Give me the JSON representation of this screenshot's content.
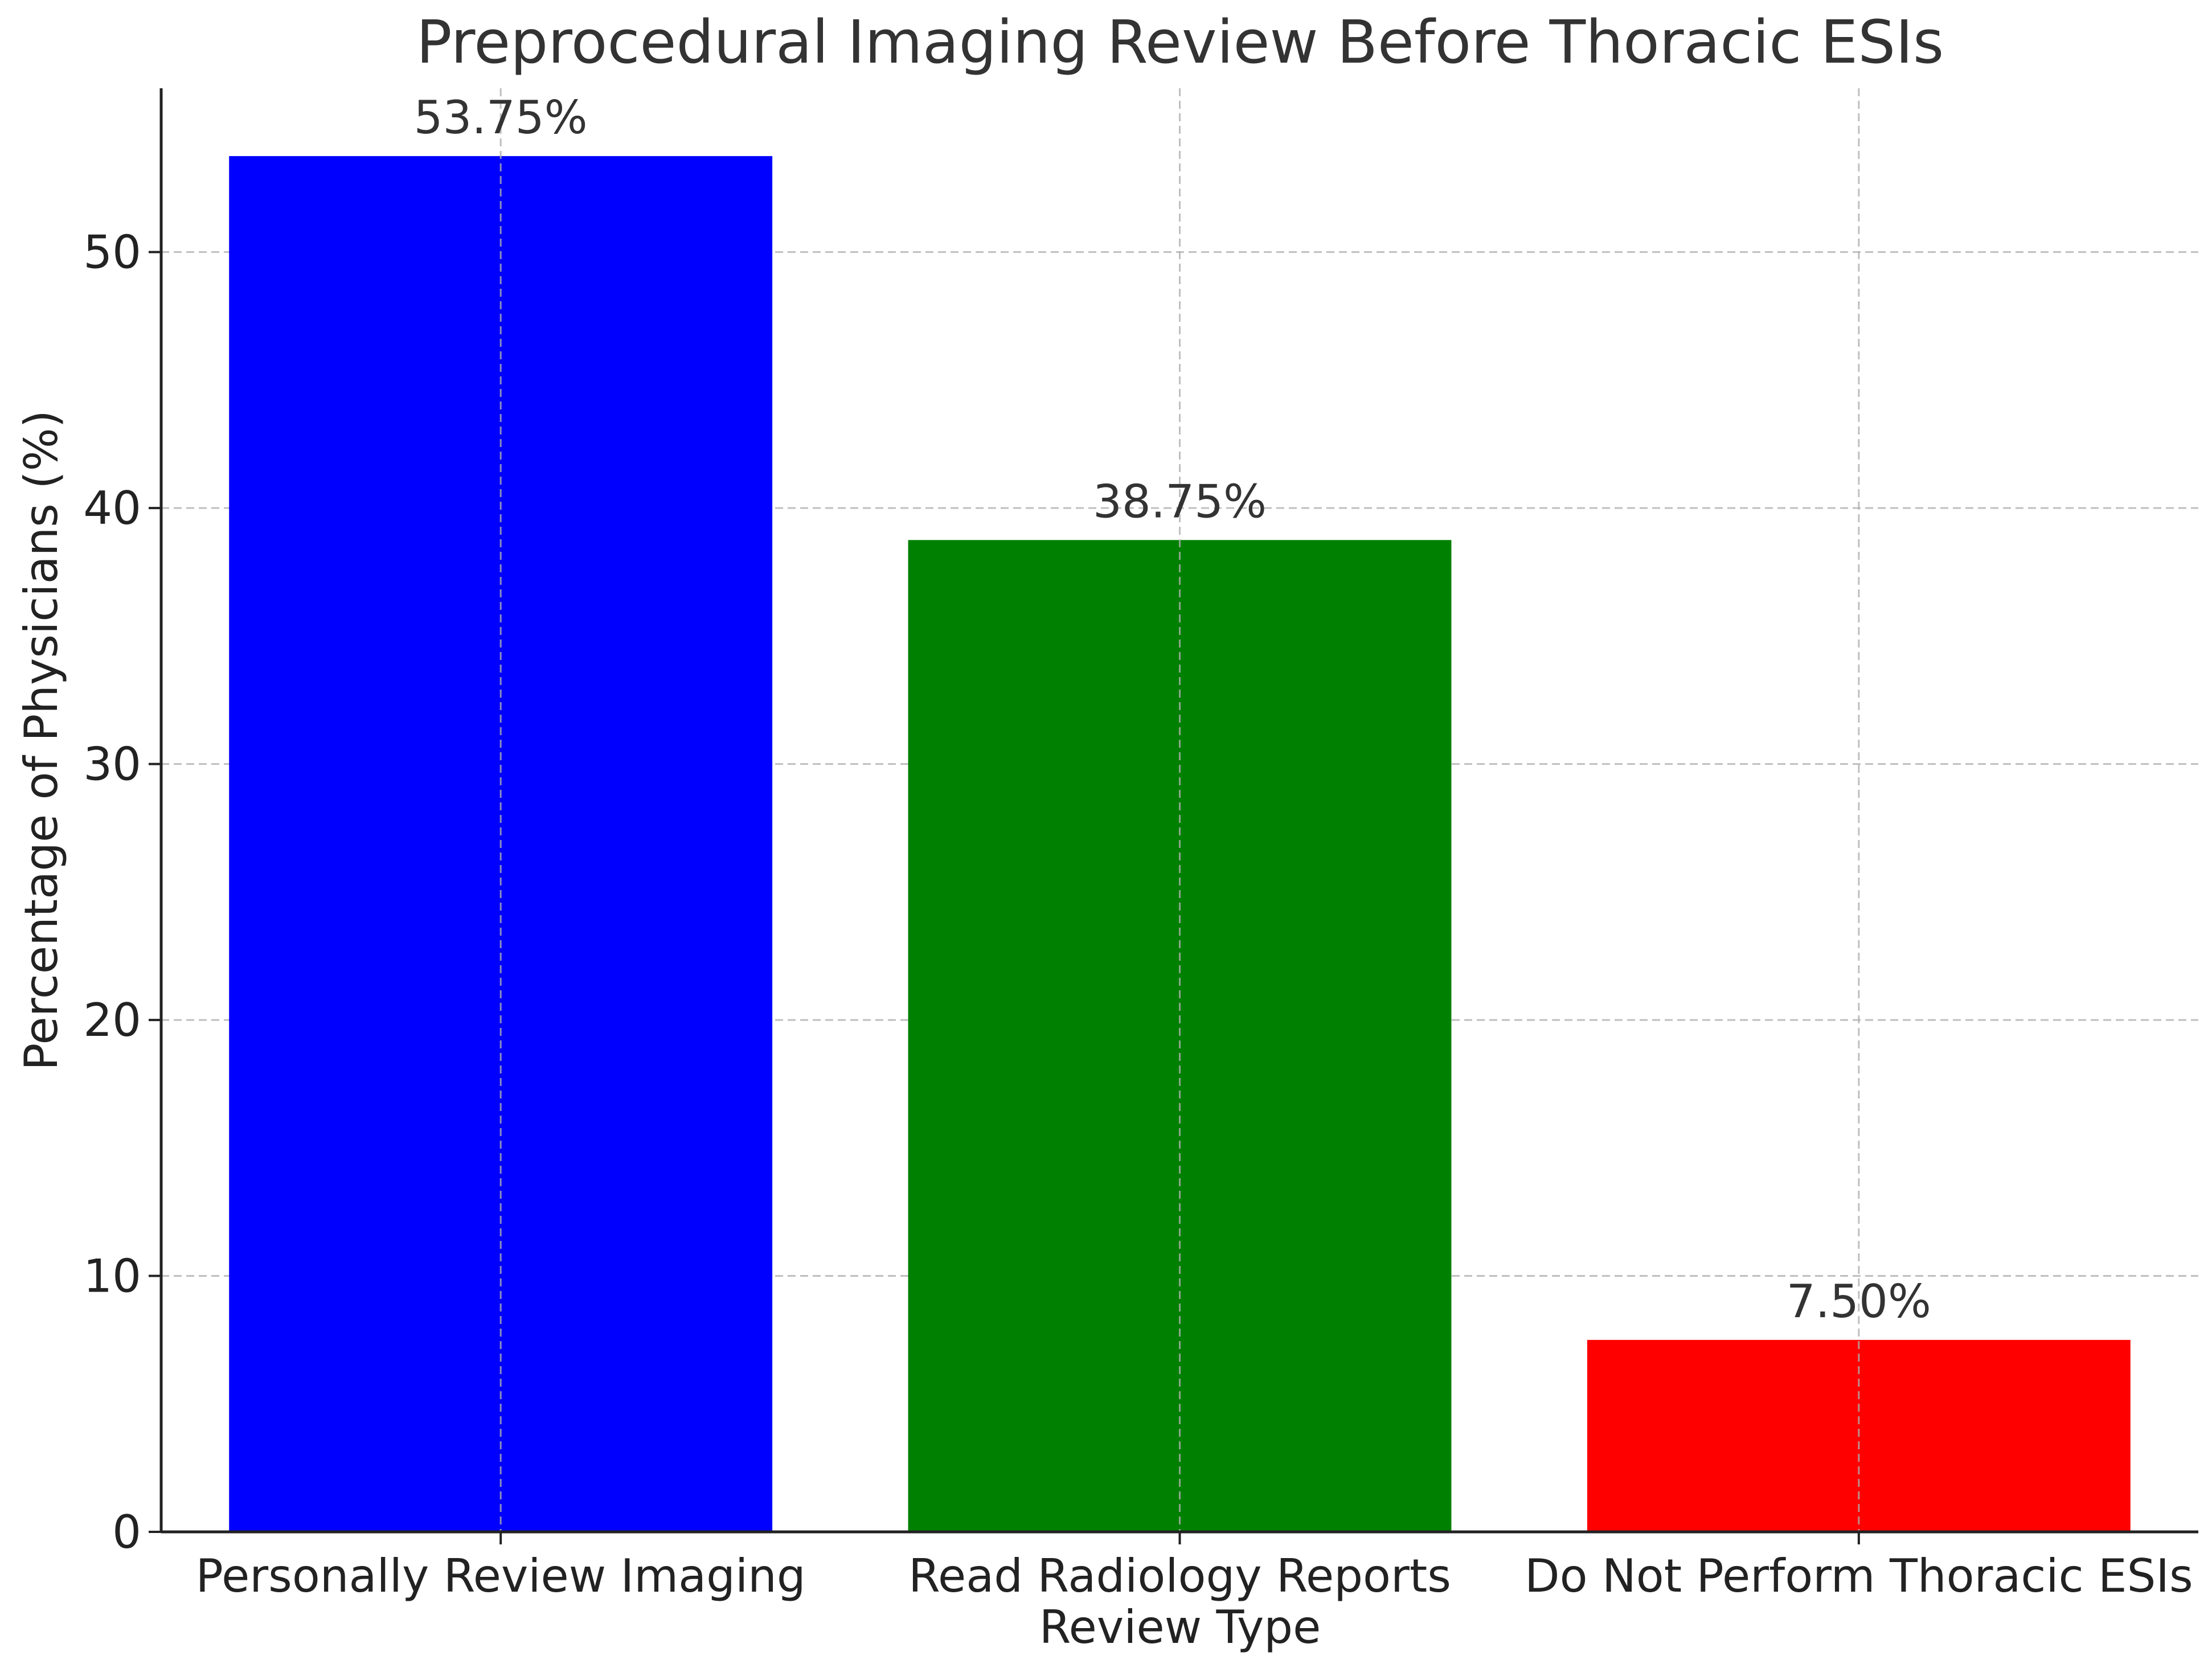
{
  "chart_data": {
    "type": "bar",
    "title": "Preprocedural Imaging Review Before Thoracic ESIs",
    "xlabel": "Review Type",
    "ylabel": "Percentage of Physicians (%)",
    "categories": [
      "Personally Review Imaging",
      "Read Radiology Reports",
      "Do Not Perform Thoracic ESIs"
    ],
    "values": [
      53.75,
      38.75,
      7.5
    ],
    "data_labels": [
      "53.75%",
      "38.75%",
      "7.50%"
    ],
    "colors": [
      "#0000ff",
      "#008000",
      "#ff0000"
    ],
    "ylim": [
      0,
      56.4
    ],
    "yticks": [
      0,
      10,
      20,
      30,
      40,
      50
    ],
    "grid": true,
    "legend": "none"
  }
}
